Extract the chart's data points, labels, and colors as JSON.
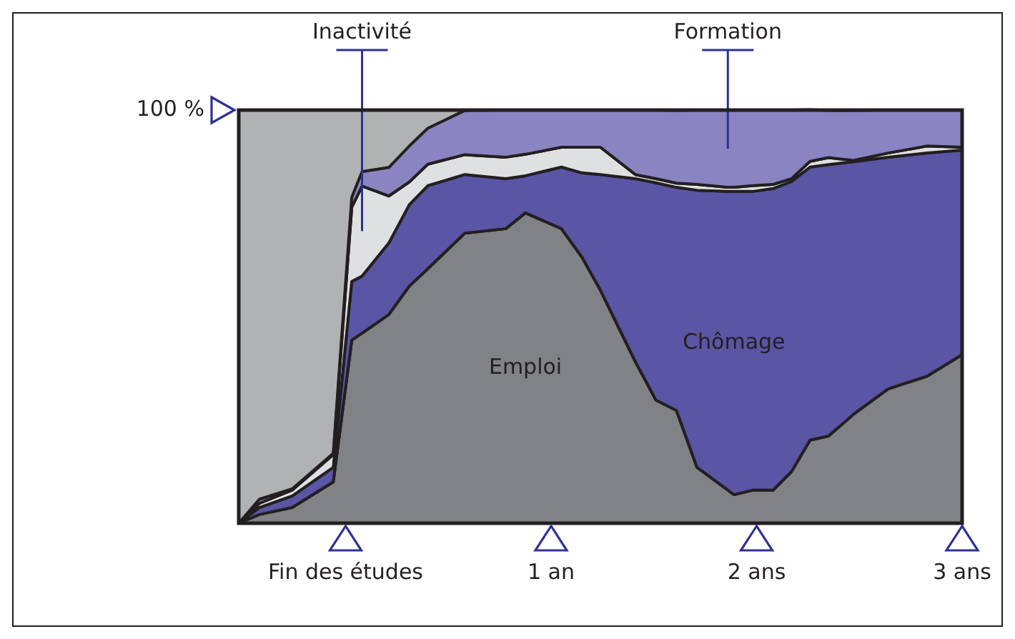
{
  "chart_data": {
    "type": "area",
    "stacked": true,
    "x": [
      -0.52,
      -0.42,
      -0.26,
      -0.06,
      0.03,
      0.08,
      0.21,
      0.31,
      0.4,
      0.58,
      0.78,
      0.875,
      1.05,
      1.15,
      1.24,
      1.41,
      1.51,
      1.61,
      1.71,
      1.86,
      1.89,
      1.98,
      2.08,
      2.17,
      2.26,
      2.35,
      2.47,
      2.64,
      2.83,
      3.0
    ],
    "xlim": [
      -0.52,
      3
    ],
    "xticks": [
      {
        "value": 0,
        "label": "Fin des études"
      },
      {
        "value": 1,
        "label": "1 an"
      },
      {
        "value": 2,
        "label": "2 ans"
      },
      {
        "value": 3,
        "label": "3 ans"
      }
    ],
    "ylim": [
      0,
      100
    ],
    "yticks": [
      {
        "value": 100,
        "label": "100 %"
      }
    ],
    "series": [
      {
        "name": "Emploi",
        "color": "#808285",
        "values": [
          0,
          2.1,
          3.8,
          10,
          44.3,
          46,
          50.5,
          57.4,
          61.6,
          70.2,
          71.3,
          75.1,
          71.3,
          64.4,
          56.4,
          39.1,
          29.8,
          27.3,
          13.5,
          8,
          6.9,
          8,
          8,
          12.5,
          20.1,
          21.1,
          26.3,
          32.5,
          35.6,
          40.8
        ]
      },
      {
        "name": "Chômage",
        "color": "#5a55a5",
        "values": [
          0,
          1.7,
          2.8,
          3.5,
          14.2,
          13.8,
          17.3,
          19.7,
          20.1,
          14.2,
          12.1,
          9,
          14.9,
          20.4,
          28,
          44.3,
          52.6,
          54,
          67.1,
          72.3,
          73.4,
          72.3,
          73,
          70.2,
          66.1,
          65.7,
          61.2,
          56.1,
          54,
          49.5
        ]
      },
      {
        "name": "Inactivité",
        "color": "#dfe0e1",
        "values": [
          0,
          1,
          1.4,
          3.1,
          18,
          21.8,
          11.4,
          5.5,
          5.2,
          4.8,
          5.2,
          5.2,
          4.8,
          6.2,
          6.6,
          1,
          1,
          1,
          1.4,
          1,
          1,
          1.4,
          1,
          0.7,
          1.4,
          1.7,
          0.3,
          1,
          1.7,
          0.7
        ]
      },
      {
        "name": "Formation",
        "color": "#8a84c2",
        "values": [
          0,
          1,
          0.3,
          0.3,
          2.4,
          3.5,
          6.9,
          8.7,
          8.7,
          10.7,
          11.4,
          10.7,
          9,
          9,
          9,
          15.6,
          16.6,
          17.6,
          18,
          18.7,
          18.7,
          18.3,
          18,
          16.6,
          12.5,
          11.4,
          12.1,
          10.4,
          8.7,
          9
        ]
      }
    ]
  }
}
